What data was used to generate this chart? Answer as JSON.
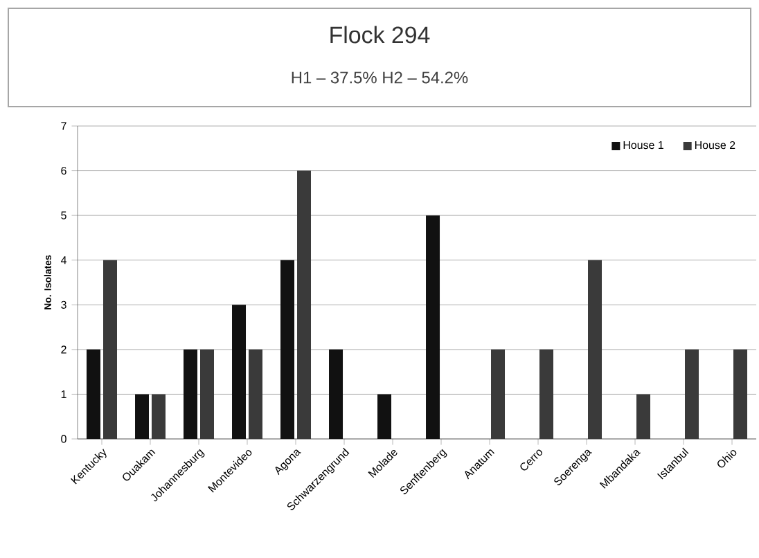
{
  "chart_data": {
    "type": "bar",
    "title": "Flock 294",
    "subtitle": "H1 – 37.5%   H2 – 54.2%",
    "ylabel": "No. Isolates",
    "categories": [
      "Kentucky",
      "Ouakam",
      "Johannesburg",
      "Montevideo",
      "Agona",
      "Schwarzengrund",
      "Molade",
      "Senftenberg",
      "Anatum",
      "Cerro",
      "Soerenga",
      "Mbandaka",
      "Istanbul",
      "Ohio"
    ],
    "series": [
      {
        "name": "House 1",
        "color": "#111111",
        "values": [
          2,
          1,
          2,
          3,
          4,
          2,
          1,
          5,
          0,
          0,
          0,
          0,
          0,
          0
        ]
      },
      {
        "name": "House 2",
        "color": "#3a3a3a",
        "values": [
          4,
          1,
          2,
          2,
          6,
          0,
          0,
          0,
          2,
          2,
          4,
          1,
          2,
          2
        ]
      }
    ],
    "ylim": [
      0,
      7
    ],
    "yticks": [
      0,
      1,
      2,
      3,
      4,
      5,
      6,
      7
    ],
    "grid": "y",
    "legend": "top right"
  }
}
